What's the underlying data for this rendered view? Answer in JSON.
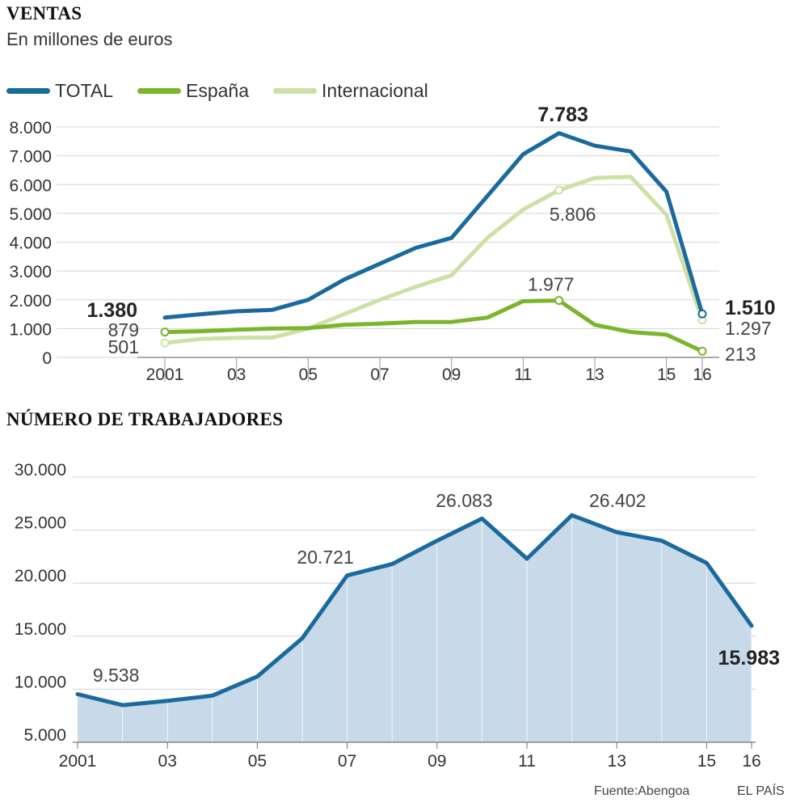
{
  "chart_data": [
    {
      "type": "line",
      "title": "VENTAS",
      "subtitle": "En millones de euros",
      "x": [
        "2001",
        "2002",
        "03",
        "2004",
        "05",
        "2006",
        "07",
        "2008",
        "09",
        "2010",
        "11",
        "2012",
        "13",
        "2014",
        "15",
        "16"
      ],
      "x_tick_labels": [
        "2001",
        "03",
        "05",
        "07",
        "09",
        "11",
        "13",
        "15",
        "16"
      ],
      "ylim": [
        0,
        8000
      ],
      "y_ticks": [
        "0",
        "1.000",
        "2.000",
        "3.000",
        "4.000",
        "5.000",
        "6.000",
        "7.000",
        "8.000"
      ],
      "grid": true,
      "legend_placement": "top-left",
      "series": [
        {
          "name": "TOTAL",
          "color": "#1a6a9e",
          "values": [
            1380,
            1500,
            1600,
            1650,
            2000,
            2700,
            3250,
            3800,
            4150,
            5600,
            7050,
            7783,
            7350,
            7150,
            5750,
            1510
          ]
        },
        {
          "name": "España",
          "color": "#7ab52c",
          "values": [
            879,
            910,
            960,
            1000,
            1020,
            1130,
            1170,
            1230,
            1230,
            1380,
            1950,
            1977,
            1130,
            880,
            790,
            213
          ]
        },
        {
          "name": "Internacional",
          "color": "#cde0a5",
          "values": [
            501,
            640,
            680,
            690,
            1000,
            1500,
            2000,
            2450,
            2850,
            4150,
            5130,
            5806,
            6230,
            6270,
            4950,
            1297
          ]
        }
      ],
      "annotations": [
        "7.783",
        "5.806",
        "1.977",
        "1.380",
        "879",
        "501",
        "1.510",
        "1.297",
        "213"
      ]
    },
    {
      "type": "area",
      "title": "NÚMERO DE TRABAJADORES",
      "x": [
        "2001",
        "2002",
        "03",
        "2004",
        "05",
        "2006",
        "07",
        "2008",
        "09",
        "2010",
        "11",
        "2012",
        "13",
        "2014",
        "15",
        "16"
      ],
      "x_tick_labels": [
        "2001",
        "03",
        "05",
        "07",
        "09",
        "11",
        "13",
        "15",
        "16"
      ],
      "ylim": [
        5000,
        30000
      ],
      "y_ticks": [
        "5.000",
        "10.000",
        "15.000",
        "20.000",
        "25.000",
        "30.000"
      ],
      "grid": true,
      "series": [
        {
          "color": "#1a6a9e",
          "fill": "#c8d9e9",
          "values": [
            9538,
            8500,
            8900,
            9400,
            11200,
            14800,
            20721,
            21800,
            24000,
            26083,
            22300,
            26402,
            24800,
            24000,
            21900,
            15983
          ]
        }
      ],
      "annotations": [
        "9.538",
        "20.721",
        "26.083",
        "26.402",
        "15.983"
      ]
    }
  ],
  "footer": {
    "source": "Fuente:Abengoa",
    "credit": "EL PAÍS"
  }
}
